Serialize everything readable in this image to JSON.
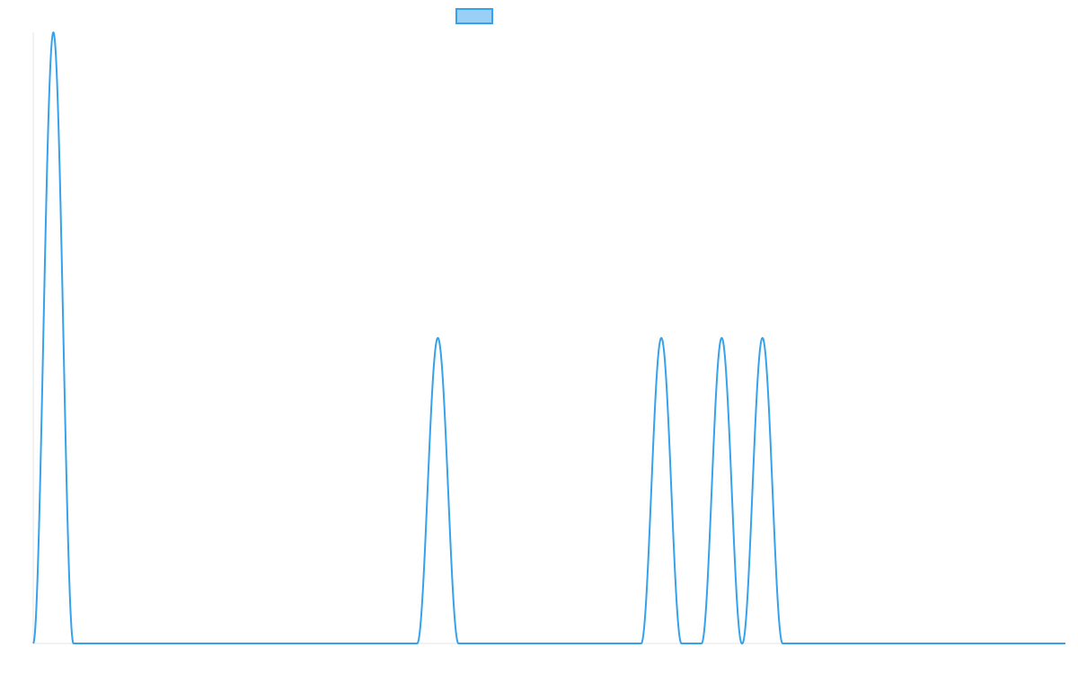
{
  "chart_data": {
    "type": "line",
    "title": "",
    "xlabel": "",
    "ylabel": "",
    "grid": false,
    "legend_position": "top-center",
    "xlim": [
      0,
      1000
    ],
    "ylim": [
      0,
      2
    ],
    "series": [
      {
        "color": "#36a2eb",
        "fill": "#9ad0f5",
        "peaks": [
          {
            "center": 19.5,
            "half_width": 19.5,
            "height": 2
          },
          {
            "center": 392,
            "half_width": 20,
            "height": 1
          },
          {
            "center": 608.5,
            "half_width": 19.5,
            "height": 1
          },
          {
            "center": 667,
            "half_width": 19.5,
            "height": 1
          },
          {
            "center": 706.5,
            "half_width": 19.5,
            "height": 1
          }
        ]
      }
    ]
  }
}
